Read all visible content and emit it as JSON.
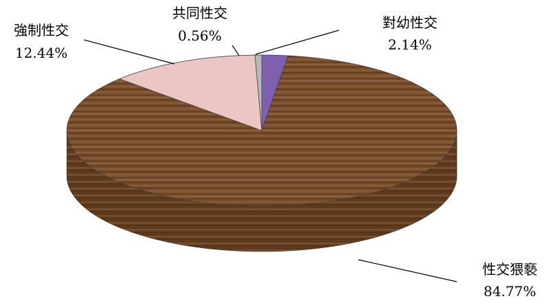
{
  "chart_data": {
    "type": "pie",
    "style": "3d",
    "start_angle_deg": 0,
    "direction": "clockwise",
    "slices": [
      {
        "label": "對幼性交",
        "value": 2.14,
        "display": "2.14%",
        "color": "#7f5fb0"
      },
      {
        "label": "性交猥褻",
        "value": 84.77,
        "display": "84.77%",
        "color": "#7a4f2c"
      },
      {
        "label": "強制性交",
        "value": 12.44,
        "display": "12.44%",
        "color": "#ecc5c5"
      },
      {
        "label": "共同性交",
        "value": 0.56,
        "display": "0.56%",
        "color": "#b8b8b8"
      }
    ]
  }
}
